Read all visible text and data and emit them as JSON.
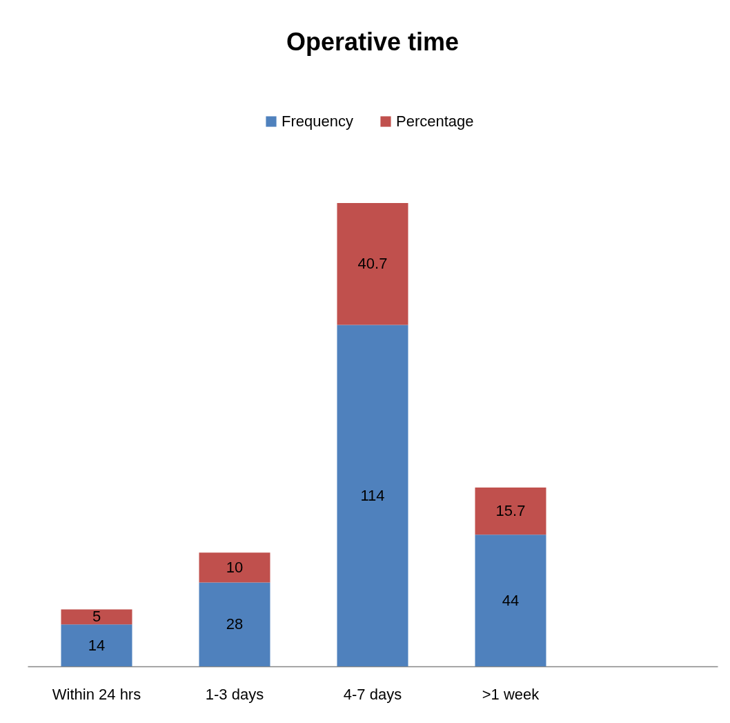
{
  "chart_data": {
    "type": "bar",
    "title": "Operative time",
    "categories": [
      "Within 24 hrs",
      "1-3 days",
      "4-7 days",
      ">1 week",
      null
    ],
    "series": [
      {
        "name": "Frequency",
        "color": "#4f81bd",
        "values": [
          14,
          28,
          114,
          44,
          null
        ]
      },
      {
        "name": "Percentage",
        "color": "#c0504d",
        "values": [
          5,
          10,
          40.7,
          15.7,
          null
        ]
      }
    ],
    "stacked": true,
    "data_labels": true,
    "legend": "top"
  }
}
